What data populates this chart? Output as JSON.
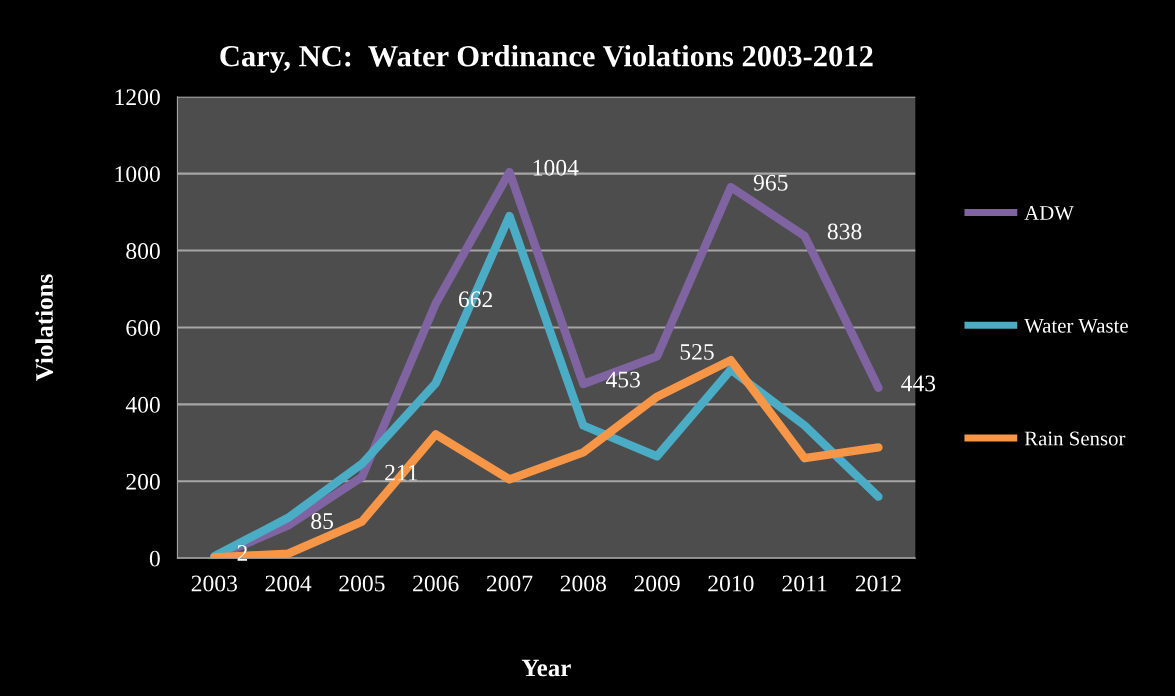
{
  "chart_data": {
    "type": "line",
    "title": "Cary, NC:  Water Ordinance Violations 2003-2012",
    "xlabel": "Year",
    "ylabel": "Violations",
    "categories": [
      "2003",
      "2004",
      "2005",
      "2006",
      "2007",
      "2008",
      "2009",
      "2010",
      "2011",
      "2012"
    ],
    "series": [
      {
        "name": "ADW",
        "color": "#8064a2",
        "values": [
          2,
          85,
          211,
          662,
          1004,
          453,
          525,
          965,
          838,
          443
        ],
        "value_labels": [
          "2",
          "85",
          "211",
          "662",
          "1004",
          "453",
          "525",
          "965",
          "838",
          "443"
        ]
      },
      {
        "name": "Water Waste",
        "color": "#4bacc6",
        "values": [
          5,
          105,
          245,
          455,
          890,
          345,
          265,
          490,
          345,
          160
        ]
      },
      {
        "name": "Rain Sensor",
        "color": "#f79646",
        "values": [
          2,
          12,
          95,
          322,
          205,
          275,
          420,
          515,
          260,
          288
        ]
      }
    ],
    "ylim": [
      0,
      1200
    ],
    "yticks": [
      0,
      200,
      400,
      600,
      800,
      1000,
      1200
    ],
    "grid": "y",
    "legend": "right",
    "marker": "none",
    "line_style": "solid"
  }
}
